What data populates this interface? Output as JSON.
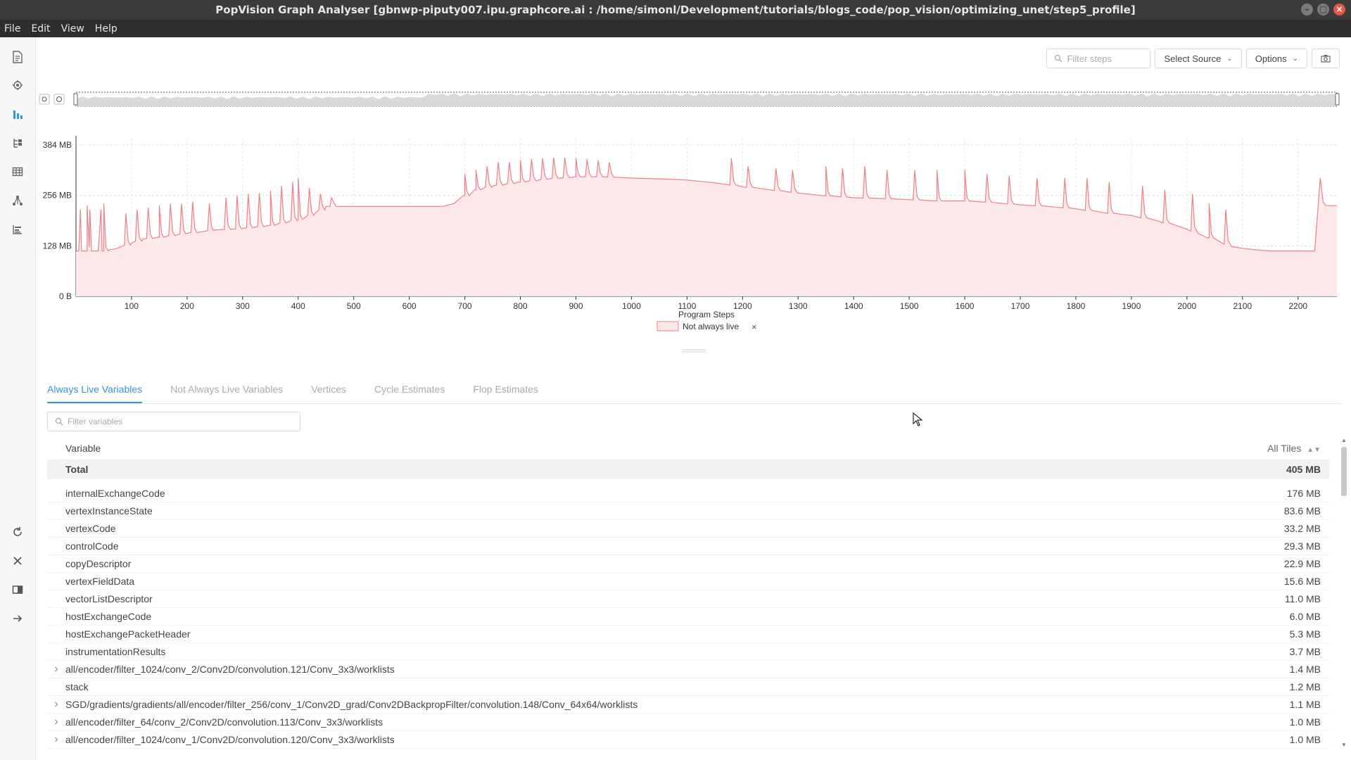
{
  "window": {
    "title": "PopVision Graph Analyser [gbnwp-piputy007.ipu.graphcore.ai : /home/simonl/Development/tutorials/blogs_code/pop_vision/optimizing_unet/step5_profile]",
    "controls": {
      "minimize": "–",
      "maximize": "□",
      "close": "×"
    }
  },
  "menu": [
    "File",
    "Edit",
    "View",
    "Help"
  ],
  "sidebar": {
    "top_icons": [
      "summary-icon",
      "memory-icon",
      "liveness-chart-icon",
      "program-tree-icon",
      "execution-table-icon",
      "graph-icon",
      "execution-trace-icon"
    ],
    "active": "liveness-chart-icon",
    "bottom_icons": [
      "reload-icon",
      "close-icon",
      "compare-icon",
      "expand-icon"
    ]
  },
  "toolbar": {
    "filter_placeholder": "Filter steps",
    "select_source": "Select Source",
    "options": "Options"
  },
  "chart_data": {
    "type": "area",
    "xlabel": "Program Steps",
    "ylabel": "",
    "y_ticks": [
      "0 B",
      "128 MB",
      "256 MB",
      "384 MB"
    ],
    "y_tick_values": [
      0,
      128,
      256,
      384
    ],
    "x_ticks": [
      100,
      200,
      300,
      400,
      500,
      600,
      700,
      800,
      900,
      1000,
      1100,
      1200,
      1300,
      1400,
      1500,
      1600,
      1700,
      1800,
      1900,
      2000,
      2100,
      2200
    ],
    "xlim": [
      0,
      2270
    ],
    "ylim": [
      0,
      400
    ],
    "grid": true,
    "legend_position": "bottom-center",
    "series": [
      {
        "name": "Not always live",
        "color": "#f07f88",
        "fill": "#fde9ea",
        "x": [
          0,
          5,
          8,
          10,
          20,
          25,
          30,
          40,
          45,
          50,
          60,
          70,
          80,
          100,
          120,
          150,
          200,
          250,
          300,
          350,
          400,
          430,
          450,
          500,
          520,
          550,
          600,
          650,
          660,
          680,
          700,
          720,
          750,
          800,
          850,
          900,
          950,
          1000,
          1050,
          1100,
          1150,
          1200,
          1250,
          1300,
          1350,
          1400,
          1450,
          1500,
          1550,
          1600,
          1650,
          1700,
          1750,
          1800,
          1850,
          1900,
          1950,
          2000,
          2020,
          2040,
          2060,
          2080,
          2100,
          2120,
          2150,
          2200,
          2230,
          2240,
          2245,
          2250,
          2255,
          2260,
          2270
        ],
        "y": [
          115,
          115,
          220,
          115,
          115,
          220,
          115,
          115,
          220,
          115,
          118,
          120,
          125,
          135,
          145,
          150,
          160,
          168,
          172,
          180,
          195,
          210,
          228,
          228,
          228,
          228,
          228,
          228,
          228,
          235,
          255,
          270,
          280,
          290,
          298,
          303,
          303,
          300,
          298,
          295,
          288,
          278,
          270,
          262,
          255,
          250,
          248,
          245,
          242,
          242,
          238,
          232,
          228,
          222,
          212,
          205,
          190,
          170,
          160,
          148,
          138,
          126,
          122,
          118,
          115,
          115,
          115,
          300,
          240,
          230,
          230,
          230,
          230
        ]
      }
    ],
    "peaks_step": [
      20,
      50,
      90,
      110,
      130,
      150,
      170,
      190,
      210,
      240,
      270,
      290,
      310,
      330,
      350,
      370,
      390,
      400,
      420,
      440,
      460,
      700,
      720,
      740,
      760,
      780,
      800,
      820,
      840,
      860,
      880,
      900,
      920,
      940,
      960,
      1180,
      1210,
      1260,
      1290,
      1350,
      1380,
      1420,
      1460,
      1510,
      1550,
      1600,
      1640,
      1680,
      1730,
      1780,
      1820,
      1860,
      1920,
      1960,
      2010,
      2040,
      2070
    ],
    "peaks_value": [
      230,
      235,
      210,
      220,
      225,
      230,
      235,
      235,
      240,
      235,
      250,
      255,
      260,
      262,
      268,
      280,
      290,
      300,
      275,
      260,
      250,
      310,
      320,
      330,
      340,
      340,
      345,
      348,
      350,
      352,
      352,
      350,
      348,
      345,
      340,
      350,
      330,
      325,
      320,
      330,
      325,
      330,
      320,
      320,
      320,
      320,
      310,
      305,
      300,
      300,
      300,
      290,
      280,
      270,
      260,
      235,
      220
    ]
  },
  "legend": {
    "label": "Not always live",
    "remove": "×"
  },
  "tabs": [
    "Always Live Variables",
    "Not Always Live Variables",
    "Vertices",
    "Cycle Estimates",
    "Flop Estimates"
  ],
  "active_tab": 0,
  "filter_variables_placeholder": "Filter variables",
  "table": {
    "col_variable": "Variable",
    "col_tiles": "All Tiles",
    "total": {
      "name": "Total",
      "value": "405 MB"
    },
    "rows": [
      {
        "name": "internalExchangeCode",
        "value": "176 MB",
        "expandable": false
      },
      {
        "name": "vertexInstanceState",
        "value": "83.6 MB",
        "expandable": false
      },
      {
        "name": "vertexCode",
        "value": "33.2 MB",
        "expandable": false
      },
      {
        "name": "controlCode",
        "value": "29.3 MB",
        "expandable": false
      },
      {
        "name": "copyDescriptor",
        "value": "22.9 MB",
        "expandable": false
      },
      {
        "name": "vertexFieldData",
        "value": "15.6 MB",
        "expandable": false
      },
      {
        "name": "vectorListDescriptor",
        "value": "11.0 MB",
        "expandable": false
      },
      {
        "name": "hostExchangeCode",
        "value": "6.0 MB",
        "expandable": false
      },
      {
        "name": "hostExchangePacketHeader",
        "value": "5.3 MB",
        "expandable": false
      },
      {
        "name": "instrumentationResults",
        "value": "3.7 MB",
        "expandable": false
      },
      {
        "name": "all/encoder/filter_1024/conv_2/Conv2D/convolution.121/Conv_3x3/worklists",
        "value": "1.4 MB",
        "expandable": true
      },
      {
        "name": "stack",
        "value": "1.2 MB",
        "expandable": false
      },
      {
        "name": "SGD/gradients/gradients/all/encoder/filter_256/conv_1/Conv2D_grad/Conv2DBackpropFilter/convolution.148/Conv_64x64/worklists",
        "value": "1.1 MB",
        "expandable": true
      },
      {
        "name": "all/encoder/filter_64/conv_2/Conv2D/convolution.113/Conv_3x3/worklists",
        "value": "1.0 MB",
        "expandable": true
      },
      {
        "name": "all/encoder/filter_1024/conv_1/Conv2D/convolution.120/Conv_3x3/worklists",
        "value": "1.0 MB",
        "expandable": true
      }
    ]
  }
}
